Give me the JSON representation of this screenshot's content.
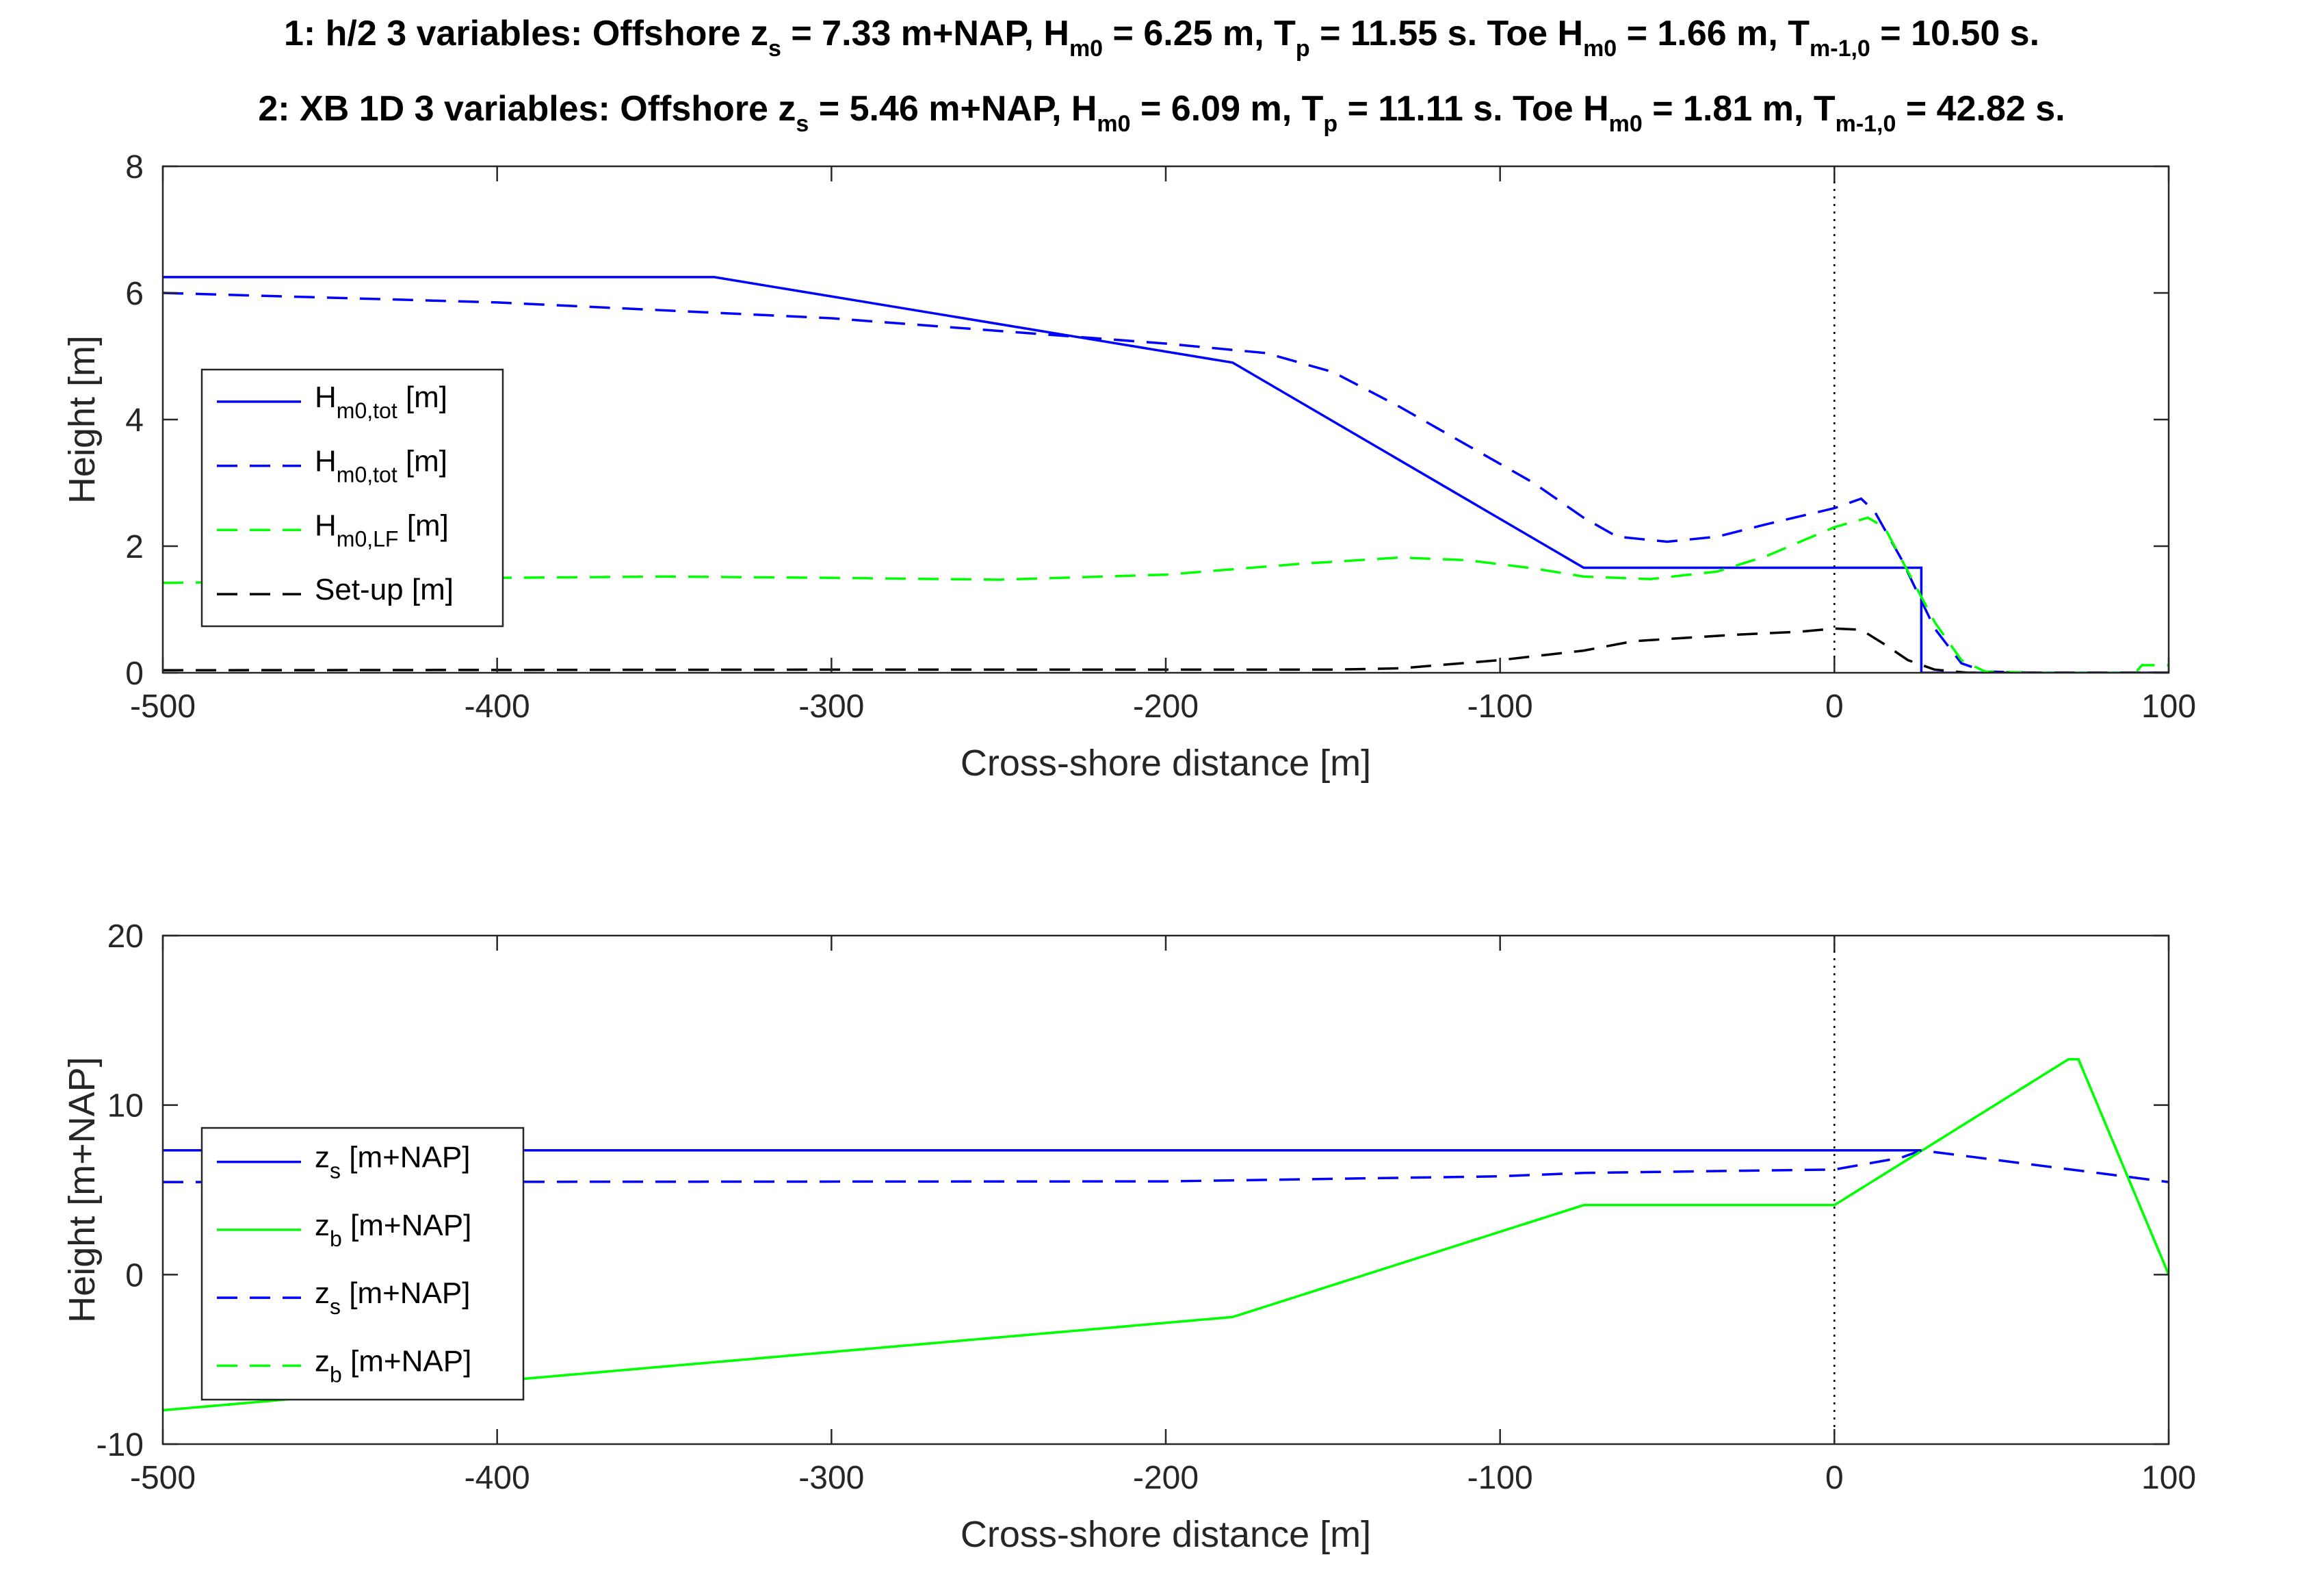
{
  "title": {
    "line1": {
      "lead": "1: h/2 3 variables: Offshore z",
      "zs_sub": "s",
      "zs_text": " = 7.33 m+NAP, H",
      "h_sub": "m0",
      "h_text": " = 6.25 m, T",
      "tp_sub": "p",
      "tp_text": " = 11.55 s. Toe H",
      "toe_sub": "m0",
      "toe_text": " = 1.66 m, T",
      "tm_sub": "m-1,0",
      "tm_text": " = 10.50 s."
    },
    "line2": {
      "lead": "2: XB 1D 3 variables: Offshore z",
      "zs_sub": "s",
      "zs_text": " = 5.46 m+NAP, H",
      "h_sub": "m0",
      "h_text": " = 6.09 m, T",
      "tp_sub": "p",
      "tp_text": " = 11.11 s. Toe H",
      "toe_sub": "m0",
      "toe_text": " = 1.81 m, T",
      "tm_sub": "m-1,0",
      "tm_text": " = 42.82 s."
    }
  },
  "chart_data": [
    {
      "type": "line",
      "xlabel": "Cross-shore distance [m]",
      "ylabel": "Height [m]",
      "xlim": [
        -500,
        100
      ],
      "ylim": [
        0,
        8
      ],
      "xticks": [
        -500,
        -400,
        -300,
        -200,
        -100,
        0,
        100
      ],
      "yticks": [
        0,
        2,
        4,
        6,
        8
      ],
      "vline_x": 0,
      "legend_position": "middle-left",
      "series": [
        {
          "name": "Hm0,tot [m]",
          "legend_main": "H",
          "legend_sub": "m0,tot",
          "legend_rest": " [m]",
          "color": "#0000ff",
          "dash": "solid",
          "x": [
            -500,
            -335,
            -180,
            -75,
            26,
            26,
            100
          ],
          "y": [
            6.25,
            6.25,
            4.9,
            1.66,
            1.66,
            0,
            0
          ]
        },
        {
          "name": "Hm0,tot [m]",
          "legend_main": "H",
          "legend_sub": "m0,tot",
          "legend_rest": " [m]",
          "color": "#0000ff",
          "dash": "dashed",
          "x": [
            -500,
            -400,
            -300,
            -250,
            -200,
            -170,
            -150,
            -130,
            -110,
            -90,
            -75,
            -65,
            -50,
            -35,
            -20,
            0,
            8,
            12,
            20,
            30,
            38,
            45,
            60,
            80,
            100
          ],
          "y": [
            6.0,
            5.85,
            5.6,
            5.4,
            5.2,
            5.05,
            4.75,
            4.2,
            3.6,
            3.0,
            2.45,
            2.15,
            2.07,
            2.15,
            2.35,
            2.6,
            2.75,
            2.55,
            1.8,
            0.7,
            0.15,
            0.02,
            0,
            0,
            0
          ]
        },
        {
          "name": "Hm0,LF [m]",
          "legend_main": "H",
          "legend_sub": "m0,LF",
          "legend_rest": " [m]",
          "color": "#00ff00",
          "dash": "dashed",
          "x": [
            -500,
            -450,
            -400,
            -350,
            -300,
            -250,
            -200,
            -160,
            -130,
            -110,
            -90,
            -75,
            -55,
            -35,
            -20,
            0,
            10,
            15,
            22,
            30,
            38,
            45,
            60,
            90,
            92,
            100
          ],
          "y": [
            1.42,
            1.45,
            1.5,
            1.52,
            1.5,
            1.47,
            1.55,
            1.72,
            1.82,
            1.78,
            1.65,
            1.52,
            1.48,
            1.6,
            1.85,
            2.3,
            2.45,
            2.3,
            1.6,
            0.8,
            0.2,
            0.02,
            0,
            0,
            0.12,
            0.12
          ]
        },
        {
          "name": "Set-up [m]",
          "legend_main": "Set-up [m]",
          "legend_sub": "",
          "legend_rest": "",
          "color": "#000000",
          "dash": "dashed",
          "x": [
            -500,
            -300,
            -150,
            -130,
            -100,
            -75,
            -60,
            -30,
            -10,
            0,
            8,
            15,
            22,
            30,
            40,
            100
          ],
          "y": [
            0.04,
            0.05,
            0.05,
            0.07,
            0.2,
            0.35,
            0.5,
            0.6,
            0.65,
            0.7,
            0.68,
            0.45,
            0.2,
            0.05,
            0.0,
            0.0
          ]
        }
      ]
    },
    {
      "type": "line",
      "xlabel": "Cross-shore distance [m]",
      "ylabel": "Height [m+NAP]",
      "xlim": [
        -500,
        100
      ],
      "ylim": [
        -10,
        20
      ],
      "xticks": [
        -500,
        -400,
        -300,
        -200,
        -100,
        0,
        100
      ],
      "yticks": [
        -10,
        0,
        10,
        20
      ],
      "vline_x": 0,
      "legend_position": "middle-left",
      "series": [
        {
          "name": "zs [m+NAP]",
          "legend_main": "z",
          "legend_sub": "s",
          "legend_rest": " [m+NAP]",
          "color": "#0000ff",
          "dash": "solid",
          "x": [
            -500,
            26
          ],
          "y": [
            7.33,
            7.33
          ]
        },
        {
          "name": "zb [m+NAP]",
          "legend_main": "z",
          "legend_sub": "b",
          "legend_rest": " [m+NAP]",
          "color": "#00ff00",
          "dash": "solid",
          "x": [
            -500,
            -180,
            -75,
            0,
            70,
            73,
            100
          ],
          "y": [
            -8,
            -2.5,
            4.1,
            4.1,
            12.7,
            12.7,
            0
          ]
        },
        {
          "name": "zs [m+NAP]",
          "legend_main": "z",
          "legend_sub": "s",
          "legend_rest": " [m+NAP]",
          "color": "#0000ff",
          "dash": "dashed",
          "x": [
            -500,
            -200,
            -100,
            -75,
            0,
            20,
            26,
            100
          ],
          "y": [
            5.46,
            5.5,
            5.8,
            6.0,
            6.2,
            6.9,
            7.33,
            5.46
          ]
        },
        {
          "name": "zb [m+NAP]",
          "legend_main": "z",
          "legend_sub": "b",
          "legend_rest": " [m+NAP]",
          "color": "#00ff00",
          "dash": "dashed",
          "x": [
            -500,
            -180,
            -75,
            0,
            70,
            73,
            100
          ],
          "y": [
            -8,
            -2.5,
            4.1,
            4.1,
            12.7,
            12.7,
            0
          ]
        }
      ]
    }
  ]
}
